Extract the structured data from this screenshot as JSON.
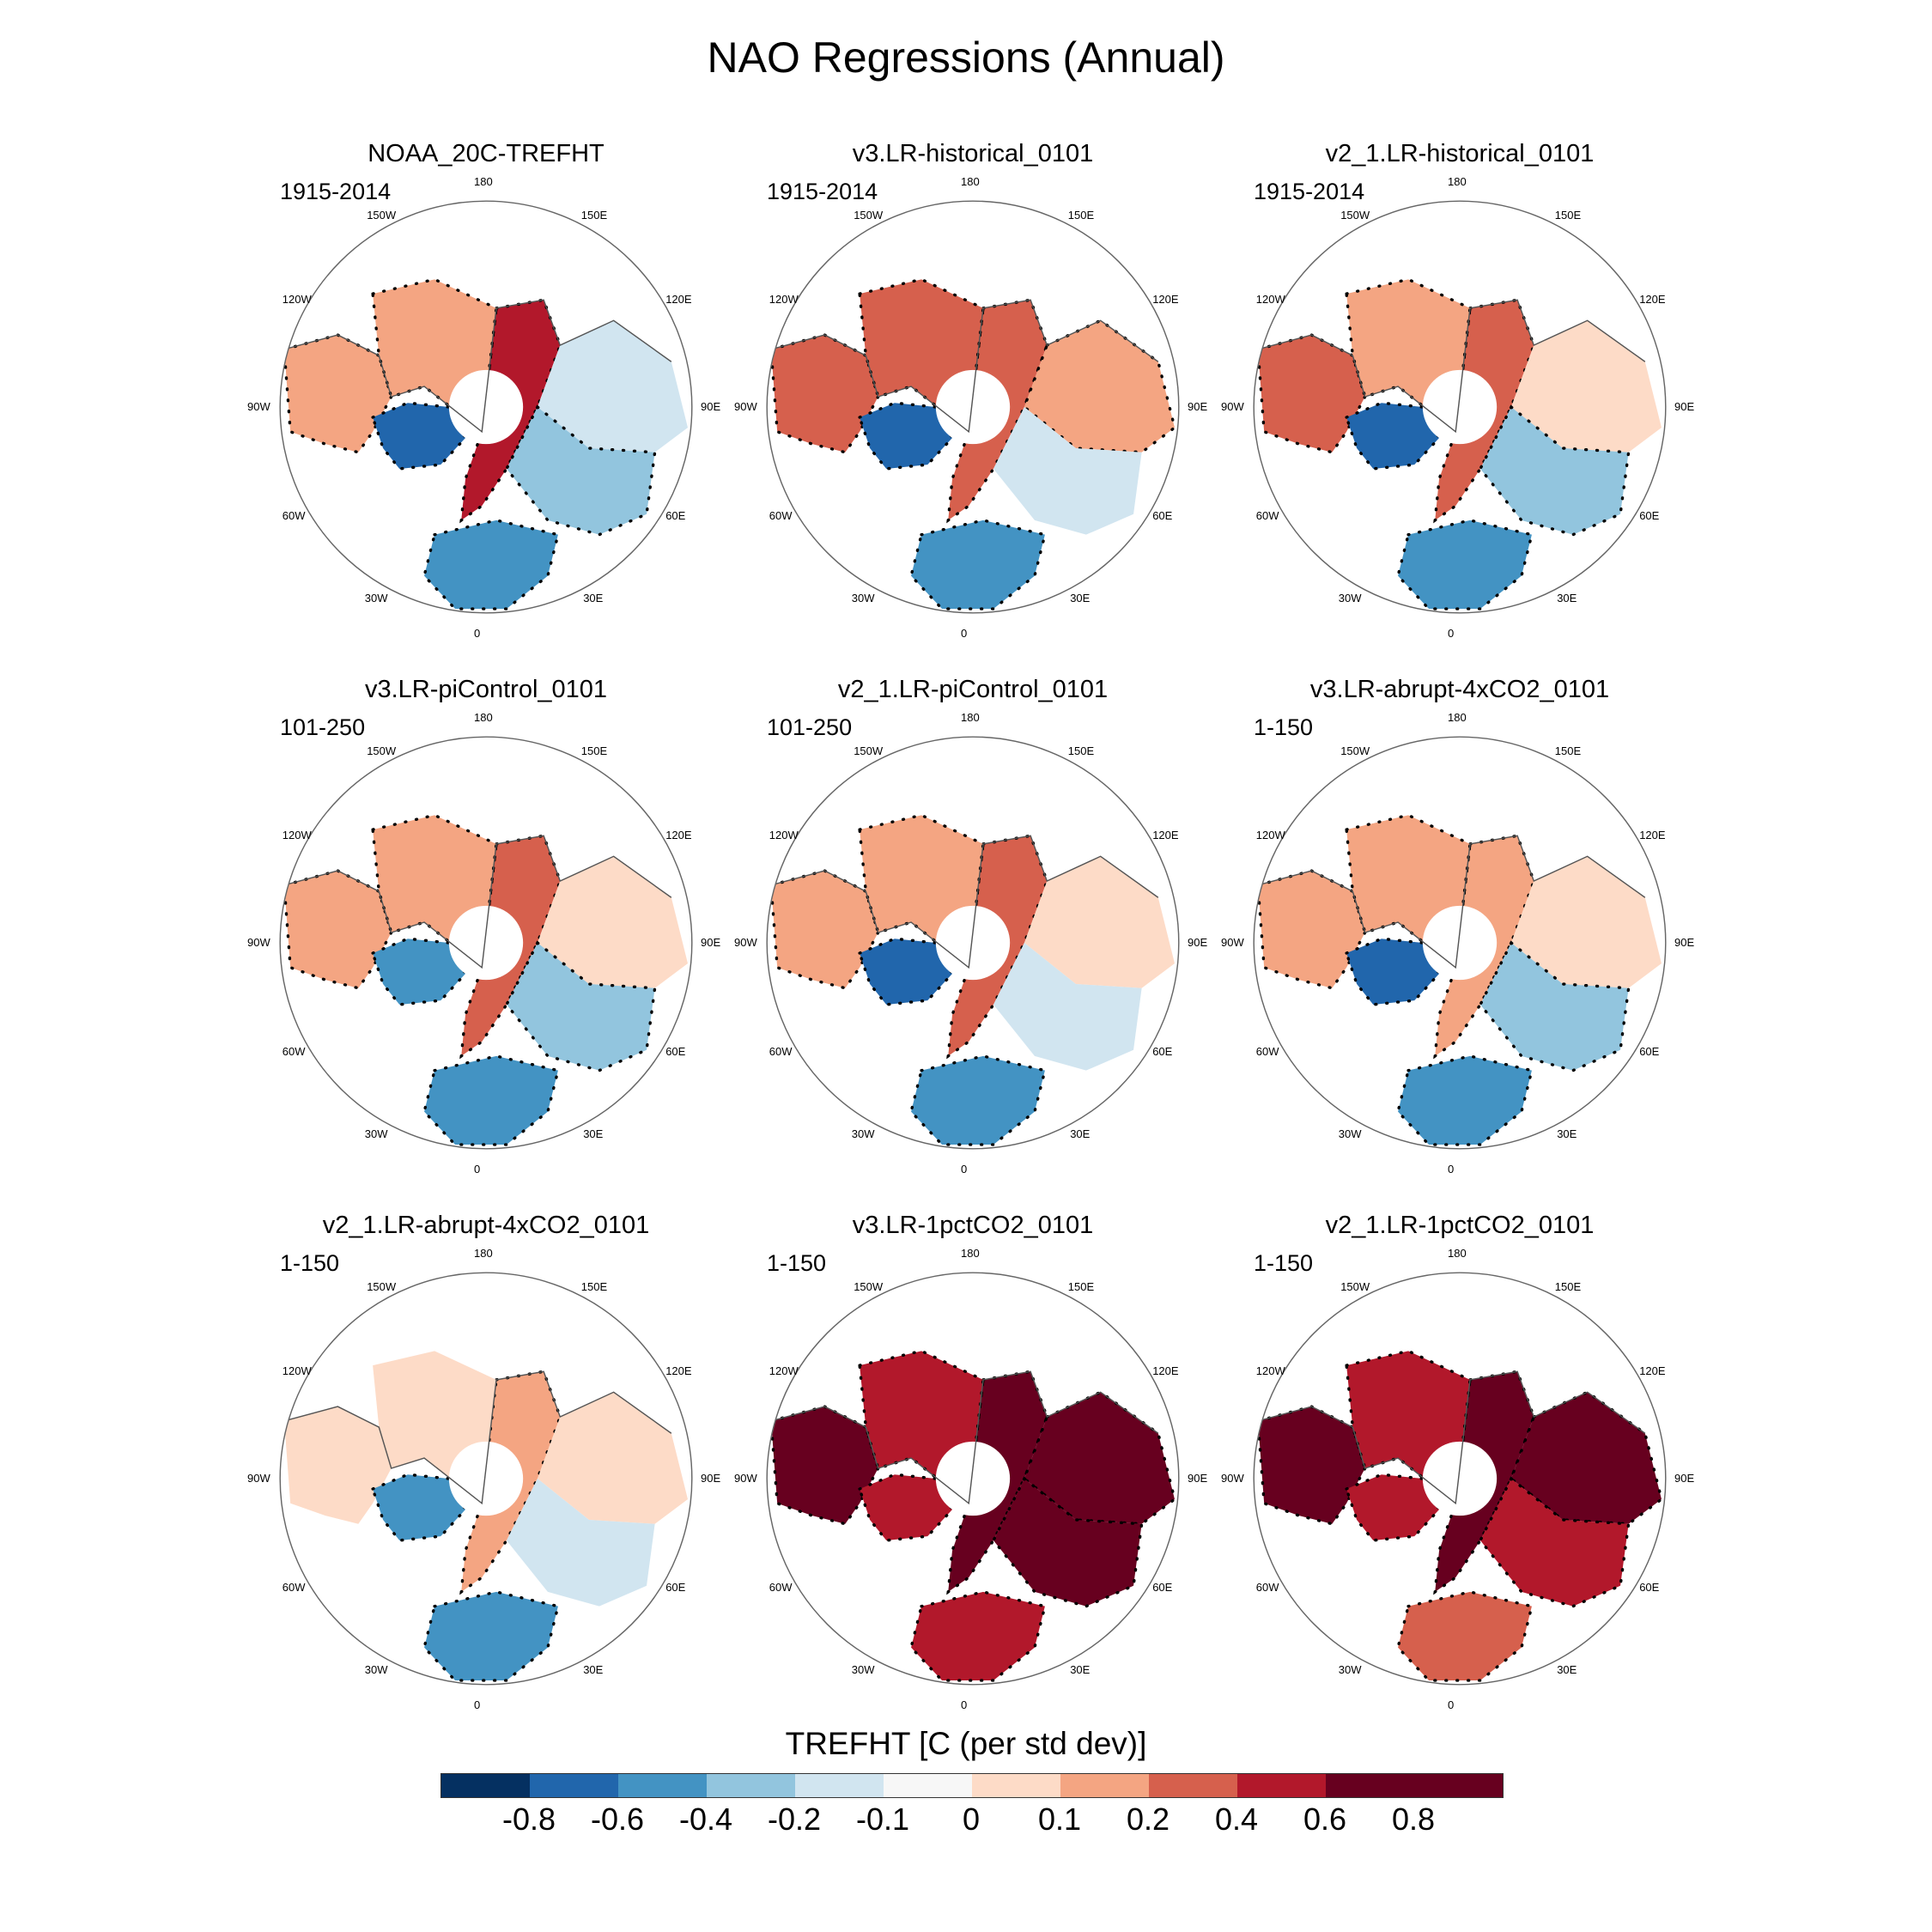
{
  "title": "NAO Regressions (Annual)",
  "colors": {
    "-0.8": "#053061",
    "-0.6": "#2166ac",
    "-0.4": "#4393c3",
    "-0.2": "#92c5de",
    "-0.1": "#d1e5f0",
    "0": "#f7f7f7",
    "0.1": "#fddbc7",
    "0.2": "#f4a582",
    "0.4": "#d6604d",
    "0.6": "#b2182b",
    "0.8": "#67001f",
    "ocean": "#ffffff",
    "land_outline": "#555555"
  },
  "longitude_labels": [
    "180",
    "150W",
    "150E",
    "120W",
    "120E",
    "90W",
    "90E",
    "60W",
    "60E",
    "30W",
    "30E",
    "0"
  ],
  "panels": [
    {
      "title": "NOAA_20C-TREFHT",
      "period": "1915-2014",
      "values": {
        "na": 0.2,
        "can": -0.6,
        "eur": 0.6,
        "atl": 0.2,
        "sib": -0.1,
        "asia": -0.2,
        "med": -0.4
      }
    },
    {
      "title": "v3.LR-historical_0101",
      "period": "1915-2014",
      "values": {
        "na": 0.4,
        "can": -0.6,
        "eur": 0.4,
        "atl": 0.4,
        "sib": 0.2,
        "asia": -0.1,
        "med": -0.4
      }
    },
    {
      "title": "v2_1.LR-historical_0101",
      "period": "1915-2014",
      "values": {
        "na": 0.4,
        "can": -0.6,
        "eur": 0.4,
        "atl": 0.2,
        "sib": 0.1,
        "asia": -0.2,
        "med": -0.4
      }
    },
    {
      "title": "v3.LR-piControl_0101",
      "period": "101-250",
      "values": {
        "na": 0.2,
        "can": -0.4,
        "eur": 0.4,
        "atl": 0.2,
        "sib": 0.1,
        "asia": -0.2,
        "med": -0.4
      }
    },
    {
      "title": "v2_1.LR-piControl_0101",
      "period": "101-250",
      "values": {
        "na": 0.2,
        "can": -0.6,
        "eur": 0.4,
        "atl": 0.2,
        "sib": 0.1,
        "asia": -0.1,
        "med": -0.4
      }
    },
    {
      "title": "v3.LR-abrupt-4xCO2_0101",
      "period": "1-150",
      "values": {
        "na": 0.2,
        "can": -0.6,
        "eur": 0.2,
        "atl": 0.2,
        "sib": 0.1,
        "asia": -0.2,
        "med": -0.4
      }
    },
    {
      "title": "v2_1.LR-abrupt-4xCO2_0101",
      "period": "1-150",
      "values": {
        "na": 0.1,
        "can": -0.4,
        "eur": 0.2,
        "atl": 0.1,
        "sib": 0.1,
        "asia": -0.1,
        "med": -0.4
      }
    },
    {
      "title": "v3.LR-1pctCO2_0101",
      "period": "1-150",
      "values": {
        "na": 0.8,
        "can": 0.6,
        "eur": 0.8,
        "atl": 0.6,
        "sib": 0.8,
        "asia": 0.8,
        "med": 0.6
      }
    },
    {
      "title": "v2_1.LR-1pctCO2_0101",
      "period": "1-150",
      "values": {
        "na": 0.8,
        "can": 0.6,
        "eur": 0.8,
        "atl": 0.6,
        "sib": 0.8,
        "asia": 0.6,
        "med": 0.4
      }
    }
  ],
  "colorbar": {
    "title": "TREFHT [C (per std dev)]",
    "ticks": [
      "-0.8",
      "-0.6",
      "-0.4",
      "-0.2",
      "-0.1",
      "0",
      "0.1",
      "0.2",
      "0.4",
      "0.6",
      "0.8"
    ],
    "colors": [
      "#053061",
      "#2166ac",
      "#4393c3",
      "#92c5de",
      "#d1e5f0",
      "#f7f7f7",
      "#fddbc7",
      "#f4a582",
      "#d6604d",
      "#b2182b",
      "#67001f",
      "#67001f"
    ]
  }
}
